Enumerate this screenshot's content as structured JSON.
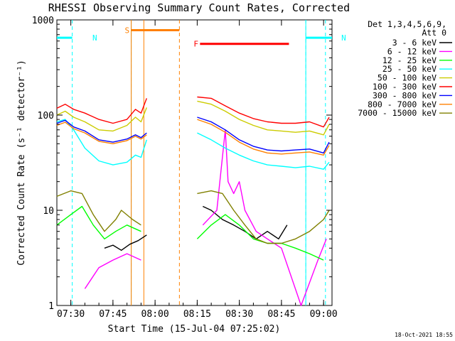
{
  "chart_data": {
    "type": "line",
    "title": "RHESSI Observing Summary Count Rates, Corrected",
    "xlabel": "Start Time (15-Jul-04 07:25:02)",
    "ylabel": "Corrected Count Rate (s⁻¹ detector⁻¹)",
    "xlim": [
      "07:25:02",
      "09:03:00"
    ],
    "x_tick_labels": [
      "07:30",
      "07:45",
      "08:00",
      "08:15",
      "08:30",
      "08:45",
      "09:00"
    ],
    "ylim": [
      1,
      1000
    ],
    "y_scale": "log",
    "y_tick_labels": [
      "1",
      "10",
      "100",
      "1000"
    ],
    "grid": false,
    "legend": {
      "position": "right",
      "header": [
        "Det 1,3,4,5,6,9,",
        "Att 0"
      ]
    },
    "series": [
      {
        "name": "3 - 6 keV",
        "color": "#000000",
        "x": [
          "07:42",
          "07:45",
          "07:48",
          "07:51",
          "07:54",
          "07:57",
          "08:17",
          "08:20",
          "08:24",
          "08:28",
          "08:32",
          "08:36",
          "08:40",
          "08:44",
          "08:47"
        ],
        "y": [
          4,
          4.3,
          3.8,
          4.4,
          4.8,
          5.5,
          11,
          10,
          8,
          7,
          6,
          5,
          6,
          5,
          7
        ]
      },
      {
        "name": "6 - 12 keV",
        "color": "#ff00ff",
        "x": [
          "07:35",
          "07:40",
          "07:45",
          "07:50",
          "07:55",
          "08:17",
          "08:22",
          "08:25",
          "08:26",
          "08:28",
          "08:30",
          "08:32",
          "08:36",
          "08:40",
          "08:45",
          "08:52",
          "08:58",
          "09:01"
        ],
        "y": [
          1.5,
          2.5,
          3,
          3.5,
          3,
          7,
          10,
          70,
          20,
          15,
          20,
          10,
          6,
          5,
          4,
          1,
          3,
          5
        ]
      },
      {
        "name": "12 - 25 keV",
        "color": "#00ff00",
        "x": [
          "07:25",
          "07:30",
          "07:34",
          "07:38",
          "07:42",
          "07:46",
          "07:50",
          "07:55",
          "08:15",
          "08:20",
          "08:25",
          "08:30",
          "08:35",
          "08:40",
          "08:45",
          "08:50",
          "08:55",
          "09:00"
        ],
        "y": [
          7,
          9,
          11,
          7,
          5,
          6,
          7,
          6,
          5,
          7,
          9,
          7,
          5,
          4.5,
          4.5,
          4,
          3.5,
          3
        ]
      },
      {
        "name": "25 - 50 keV",
        "color": "#00ffff",
        "x": [
          "07:25",
          "07:28",
          "07:31",
          "07:35",
          "07:40",
          "07:45",
          "07:50",
          "07:53",
          "07:55",
          "07:57",
          "08:15",
          "08:20",
          "08:25",
          "08:30",
          "08:35",
          "08:40",
          "08:45",
          "08:50",
          "08:55",
          "09:00",
          "09:02"
        ],
        "y": [
          85,
          90,
          70,
          45,
          33,
          30,
          32,
          38,
          36,
          55,
          65,
          55,
          45,
          38,
          33,
          30,
          29,
          28,
          29,
          27,
          32
        ]
      },
      {
        "name": "50 - 100 keV",
        "color": "#cccc00",
        "x": [
          "07:25",
          "07:28",
          "07:31",
          "07:35",
          "07:40",
          "07:45",
          "07:50",
          "07:53",
          "07:55",
          "07:57",
          "08:15",
          "08:20",
          "08:25",
          "08:30",
          "08:35",
          "08:40",
          "08:45",
          "08:50",
          "08:55",
          "09:00",
          "09:02"
        ],
        "y": [
          100,
          110,
          95,
          85,
          70,
          68,
          78,
          95,
          85,
          120,
          140,
          130,
          110,
          90,
          78,
          70,
          68,
          66,
          68,
          62,
          80
        ]
      },
      {
        "name": "100 - 300 keV",
        "color": "#ff0000",
        "x": [
          "07:25",
          "07:28",
          "07:31",
          "07:35",
          "07:40",
          "07:45",
          "07:50",
          "07:53",
          "07:55",
          "07:57",
          "08:15",
          "08:20",
          "08:25",
          "08:30",
          "08:35",
          "08:40",
          "08:45",
          "08:50",
          "08:55",
          "09:00",
          "09:02"
        ],
        "y": [
          118,
          130,
          115,
          105,
          90,
          82,
          90,
          115,
          105,
          150,
          155,
          150,
          125,
          105,
          92,
          85,
          82,
          82,
          85,
          75,
          95
        ]
      },
      {
        "name": "300 - 800 keV",
        "color": "#0000ff",
        "x": [
          "07:25",
          "07:28",
          "07:31",
          "07:35",
          "07:40",
          "07:45",
          "07:50",
          "07:53",
          "07:55",
          "07:57",
          "08:15",
          "08:20",
          "08:25",
          "08:30",
          "08:35",
          "08:40",
          "08:45",
          "08:50",
          "08:55",
          "09:00",
          "09:02"
        ],
        "y": [
          82,
          88,
          75,
          68,
          55,
          52,
          56,
          62,
          58,
          65,
          95,
          85,
          70,
          55,
          47,
          43,
          42,
          43,
          44,
          40,
          52
        ]
      },
      {
        "name": "800 - 7000 keV",
        "color": "#ff8000",
        "x": [
          "07:25",
          "07:28",
          "07:31",
          "07:35",
          "07:40",
          "07:45",
          "07:50",
          "07:53",
          "07:55",
          "07:57",
          "08:15",
          "08:20",
          "08:25",
          "08:30",
          "08:35",
          "08:40",
          "08:45",
          "08:50",
          "08:55",
          "09:00",
          "09:02"
        ],
        "y": [
          78,
          84,
          72,
          65,
          53,
          50,
          54,
          60,
          56,
          62,
          90,
          80,
          66,
          52,
          44,
          40,
          39,
          40,
          41,
          38,
          48
        ]
      },
      {
        "name": "7000 - 15000 keV",
        "color": "#808000",
        "x": [
          "07:25",
          "07:30",
          "07:34",
          "07:38",
          "07:42",
          "07:46",
          "07:48",
          "07:52",
          "07:55",
          "08:15",
          "08:20",
          "08:24",
          "08:28",
          "08:32",
          "08:36",
          "08:40",
          "08:45",
          "08:50",
          "08:55",
          "09:00",
          "09:02"
        ],
        "y": [
          14,
          16,
          15,
          9,
          6,
          8,
          10,
          8,
          7,
          15,
          16,
          15,
          10,
          7,
          5,
          4.5,
          4.5,
          5,
          6,
          8,
          10
        ]
      }
    ],
    "annotations": [
      {
        "label": "N",
        "color": "#00ffff",
        "span": [
          "07:25:02",
          "07:30:30"
        ],
        "level": 650,
        "boundaries": [
          "07:30:30",
          "08:53:40",
          "09:00:40"
        ]
      },
      {
        "label": "N",
        "color": "#00ffff",
        "span": [
          "08:53:40",
          "09:03:00"
        ],
        "level": 650
      },
      {
        "label": "S",
        "color": "#ff8000",
        "span": [
          "07:51:30",
          "08:08:40"
        ],
        "level": 780,
        "boundaries": [
          "07:51:30",
          "08:08:40"
        ]
      },
      {
        "label": "F",
        "color": "#ff0000",
        "span": [
          "08:16:00",
          "08:47:40"
        ],
        "level": 560
      }
    ],
    "detector_edges": {
      "cyan_solid": [
        "07:51:30",
        "08:53:40"
      ],
      "orange_solid": [
        "07:51:30",
        "07:56:00"
      ]
    },
    "footer_timestamp": "18-Oct-2021 18:55"
  }
}
